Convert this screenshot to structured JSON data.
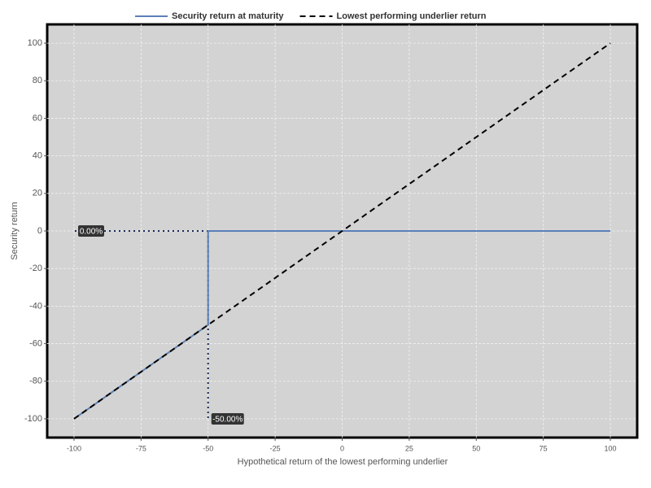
{
  "chart_data": {
    "type": "line",
    "xlabel": "Hypothetical return of the lowest performing underlier",
    "ylabel": "Security return",
    "series": [
      {
        "name": "Security return at maturity",
        "color": "#5b80b8",
        "style": "solid",
        "x": [
          -100,
          -50,
          -50,
          100
        ],
        "values": [
          -100,
          -50,
          0,
          0
        ]
      },
      {
        "name": "Lowest performing underlier return",
        "color": "#000000",
        "style": "dashed",
        "x": [
          -100,
          100
        ],
        "values": [
          -100,
          100
        ]
      }
    ],
    "markers": [
      {
        "axis": "y",
        "value": 0,
        "label": "0.00%"
      },
      {
        "axis": "x",
        "value": -50,
        "label": "-50.00%"
      }
    ],
    "xlim": [
      -110,
      110
    ],
    "ylim": [
      -110,
      110
    ],
    "xticks": [
      -100,
      -75,
      -50,
      -25,
      0,
      25,
      50,
      75,
      100
    ],
    "yticks": [
      -100,
      -80,
      -60,
      -40,
      -20,
      0,
      20,
      40,
      60,
      80,
      100
    ],
    "grid": true,
    "legend": "top"
  }
}
